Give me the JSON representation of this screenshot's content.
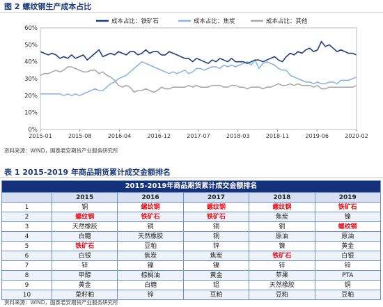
{
  "figure": {
    "title": "图 2 螺纹钢生产成本占比",
    "source": "资料来源：WIND，国泰君安期货产业服务研究所"
  },
  "chart_data": {
    "type": "line",
    "title": "",
    "ylim": [
      0,
      60
    ],
    "yticks": [
      "0%",
      "10%",
      "20%",
      "30%",
      "40%",
      "50%",
      "60%"
    ],
    "ytick_values": [
      0,
      10,
      20,
      30,
      40,
      50,
      60
    ],
    "xticks": [
      "2015-01",
      "2015-08",
      "2016-04",
      "2016-12",
      "2017-07",
      "2018-03",
      "2018-11",
      "2019-06",
      "2020-02"
    ],
    "legend_position": "top",
    "grid": false,
    "series": [
      {
        "name": "成本占比：铁矿石",
        "color": "#1f3d7a",
        "values": [
          46,
          45,
          44,
          45,
          44,
          42,
          43,
          42,
          44,
          42,
          43,
          44,
          41,
          43,
          45,
          47,
          43,
          44,
          45,
          44,
          46,
          45,
          44,
          46,
          46,
          44,
          45,
          47,
          45,
          46,
          46,
          44,
          44,
          46,
          45,
          44,
          43,
          42,
          42,
          40,
          42,
          41,
          40,
          39,
          41,
          40,
          42,
          41,
          40,
          42,
          40,
          40,
          40,
          39,
          40,
          41,
          41,
          40,
          41,
          42,
          43,
          41,
          40,
          43,
          45,
          44,
          46,
          45,
          47,
          48,
          46,
          47,
          52,
          49,
          50,
          48,
          46,
          47,
          46,
          45,
          45,
          44
        ]
      },
      {
        "name": "成本占比：焦炭",
        "color": "#8fb2e6",
        "values": [
          21,
          21,
          21,
          21,
          21,
          21,
          20,
          21,
          20,
          21,
          20,
          21,
          22,
          23,
          24,
          23,
          23,
          25,
          27,
          28,
          30,
          31,
          32,
          34,
          36,
          38,
          40,
          39,
          38,
          37,
          36,
          35,
          34,
          33,
          34,
          33,
          34,
          35,
          33,
          34,
          36,
          36,
          35,
          36,
          37,
          37,
          36,
          38,
          37,
          38,
          37,
          38,
          39,
          40,
          38,
          41,
          36,
          39,
          40,
          39,
          38,
          36,
          35,
          35,
          32,
          31,
          30,
          29,
          28,
          28,
          27,
          28,
          27,
          27,
          28,
          28,
          27,
          29,
          29,
          29,
          30,
          31
        ]
      },
      {
        "name": "成本占比：其他",
        "color": "#a8a8a8",
        "values": [
          32,
          33,
          33,
          34,
          35,
          34,
          35,
          37,
          37,
          36,
          35,
          34,
          34,
          35,
          35,
          33,
          34,
          32,
          31,
          29,
          26,
          25,
          26,
          25,
          22,
          23,
          23,
          24,
          23,
          22,
          23,
          25,
          24,
          24,
          25,
          25,
          25,
          25,
          26,
          25,
          26,
          25,
          25,
          25,
          26,
          26,
          26,
          25,
          25,
          26,
          26,
          25,
          25,
          24,
          25,
          25,
          25,
          24,
          25,
          25,
          26,
          27,
          26,
          26,
          27,
          26,
          27,
          26,
          26,
          26,
          25,
          26,
          24,
          24,
          25,
          25,
          25,
          25,
          25,
          25,
          25,
          26
        ]
      }
    ]
  },
  "table": {
    "title": "表 1 2015-2019 年商品期货累计成交金额排名",
    "caption": "2015-2019年商品期货累计成交金额排名",
    "headers": [
      "",
      "2015",
      "2016",
      "2017",
      "2018",
      "2019"
    ],
    "rows": [
      [
        "1",
        "铜",
        "螺纹钢",
        "螺纹钢",
        "螺纹钢",
        "铁矿石"
      ],
      [
        "2",
        "螺纹钢",
        "铁矿石",
        "铁矿石",
        "焦炭",
        "镍"
      ],
      [
        "3",
        "天然橡胶",
        "铜",
        "铜",
        "铜",
        "螺纹钢"
      ],
      [
        "4",
        "白糖",
        "天然橡胶",
        "铜",
        "原油",
        "原油"
      ],
      [
        "5",
        "铁矿石",
        "豆粕",
        "锌",
        "镍",
        "黄金"
      ],
      [
        "6",
        "白银",
        "焦炭",
        "焦炭",
        "铁矿石",
        "白银"
      ],
      [
        "7",
        "锌",
        "镍",
        "镍",
        "锌",
        "锌"
      ],
      [
        "8",
        "甲醇",
        "棕榈油",
        "黄金",
        "苹果",
        "PTA"
      ],
      [
        "9",
        "黄金",
        "白糖",
        "铝",
        "天然橡胶",
        "铜"
      ],
      [
        "10",
        "菜籽粕",
        "锌",
        "豆粕",
        "豆粕",
        "豆粕"
      ]
    ],
    "highlight_terms": [
      "螺纹钢",
      "铁矿石"
    ],
    "highlight_color": "#e8101a",
    "source": "资料来源：WIND，国泰君安期货产业服务研究所"
  }
}
